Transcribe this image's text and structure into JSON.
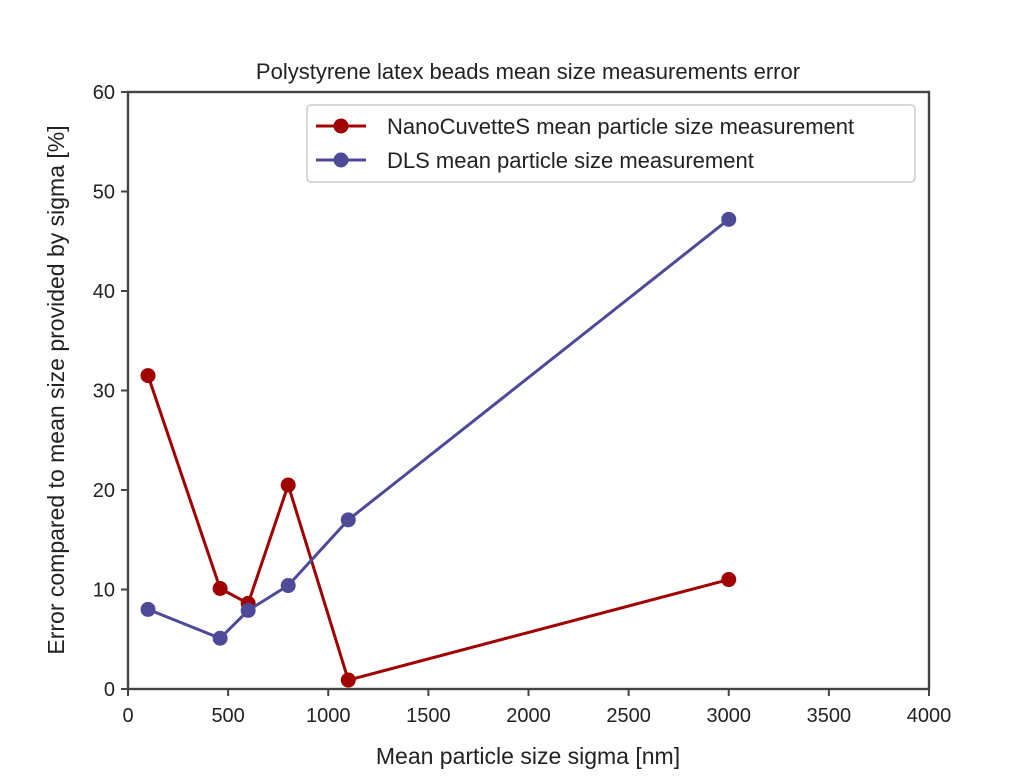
{
  "chart_data": {
    "type": "line",
    "title": "Polystyrene latex beads mean size measurements error",
    "xlabel": "Mean particle size sigma [nm]",
    "ylabel": "Error compared to mean size provided by sigma [%]",
    "xlim": [
      0,
      4000
    ],
    "ylim": [
      0,
      60
    ],
    "xticks": [
      0,
      500,
      1000,
      1500,
      2000,
      2500,
      3000,
      3500,
      4000
    ],
    "yticks": [
      0,
      10,
      20,
      30,
      40,
      50,
      60
    ],
    "grid": false,
    "legend_position": "top-right",
    "series": [
      {
        "name": "NanoCuvetteS mean particle size measurement",
        "color": "#a00000",
        "x": [
          100,
          460,
          600,
          800,
          1100,
          3000
        ],
        "y": [
          31.5,
          10.1,
          8.6,
          20.5,
          0.9,
          11.0
        ]
      },
      {
        "name": "DLS mean particle size measurement",
        "color": "#4f4a97",
        "x": [
          100,
          460,
          600,
          800,
          1100,
          3000
        ],
        "y": [
          8.0,
          5.1,
          7.9,
          10.4,
          17.0,
          47.2
        ]
      }
    ]
  }
}
